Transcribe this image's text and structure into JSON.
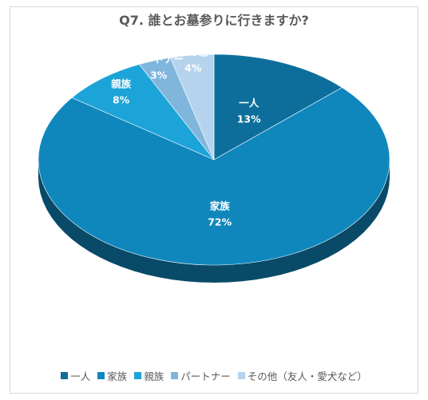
{
  "chart_data": {
    "type": "pie",
    "title": "Q7. 誰とお墓参りに行きますか?",
    "slices": [
      {
        "label": "一人",
        "value": 13,
        "display": "13%",
        "color": "#0d6e9b"
      },
      {
        "label": "家族",
        "value": 72,
        "display": "72%",
        "color": "#0f87bd"
      },
      {
        "label": "親族",
        "value": 8,
        "display": "8%",
        "color": "#1ca4d9"
      },
      {
        "label": "パートナー",
        "value": 3,
        "display": "3%",
        "color": "#80b6dc"
      },
      {
        "label": "その他",
        "value": 4,
        "display": "4%",
        "color": "#b5d3ec"
      }
    ],
    "legend": [
      {
        "label": "一人",
        "color": "#0d6e9b"
      },
      {
        "label": "家族",
        "color": "#0f87bd"
      },
      {
        "label": "親族",
        "color": "#1ca4d9"
      },
      {
        "label": "パートナー",
        "color": "#80b6dc"
      },
      {
        "label": "その他（友人・愛犬など）",
        "color": "#b5d3ec"
      }
    ],
    "legend_position": "bottom",
    "style": "3d"
  }
}
